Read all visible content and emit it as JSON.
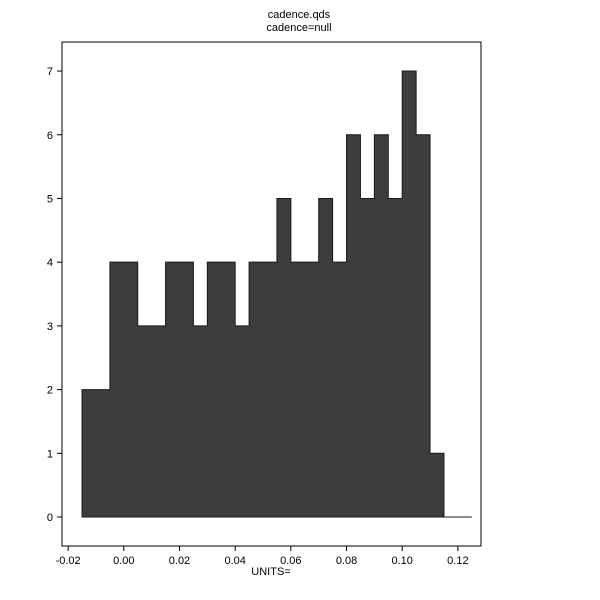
{
  "title": "cadence.qds",
  "subtitle": "cadence=null",
  "x_axis_label": "UNITS=",
  "chart_data": {
    "type": "bar",
    "chart_kind": "histogram",
    "title": "cadence.qds",
    "subtitle": "cadence=null",
    "xlabel": "UNITS=",
    "ylabel": "",
    "grid": false,
    "legend": "none",
    "bar_color": "#3d3d3d",
    "bar_edge_color": "#1a1a1a",
    "axis_color": "#000000",
    "background": "#ffffff",
    "bins": {
      "start": -0.015,
      "width": 0.005
    },
    "counts": [
      2,
      2,
      4,
      4,
      3,
      3,
      4,
      4,
      3,
      4,
      4,
      3,
      4,
      4,
      5,
      4,
      4,
      5,
      4,
      6,
      5,
      6,
      5,
      7,
      6,
      1,
      0,
      0
    ],
    "x_ticks": {
      "values": [
        -0.02,
        0.0,
        0.02,
        0.04,
        0.06,
        0.08,
        0.1,
        0.12
      ],
      "labels": [
        "-0.02",
        "0.00",
        "0.02",
        "0.04",
        "0.06",
        "0.08",
        "0.10",
        "0.12"
      ]
    },
    "y_ticks": {
      "values": [
        0,
        1,
        2,
        3,
        4,
        5,
        6,
        7
      ],
      "labels": [
        "0",
        "1",
        "2",
        "3",
        "4",
        "5",
        "6",
        "7"
      ]
    },
    "xlim": [
      -0.0222,
      0.1283
    ],
    "ylim": [
      -0.455,
      7.456
    ]
  }
}
